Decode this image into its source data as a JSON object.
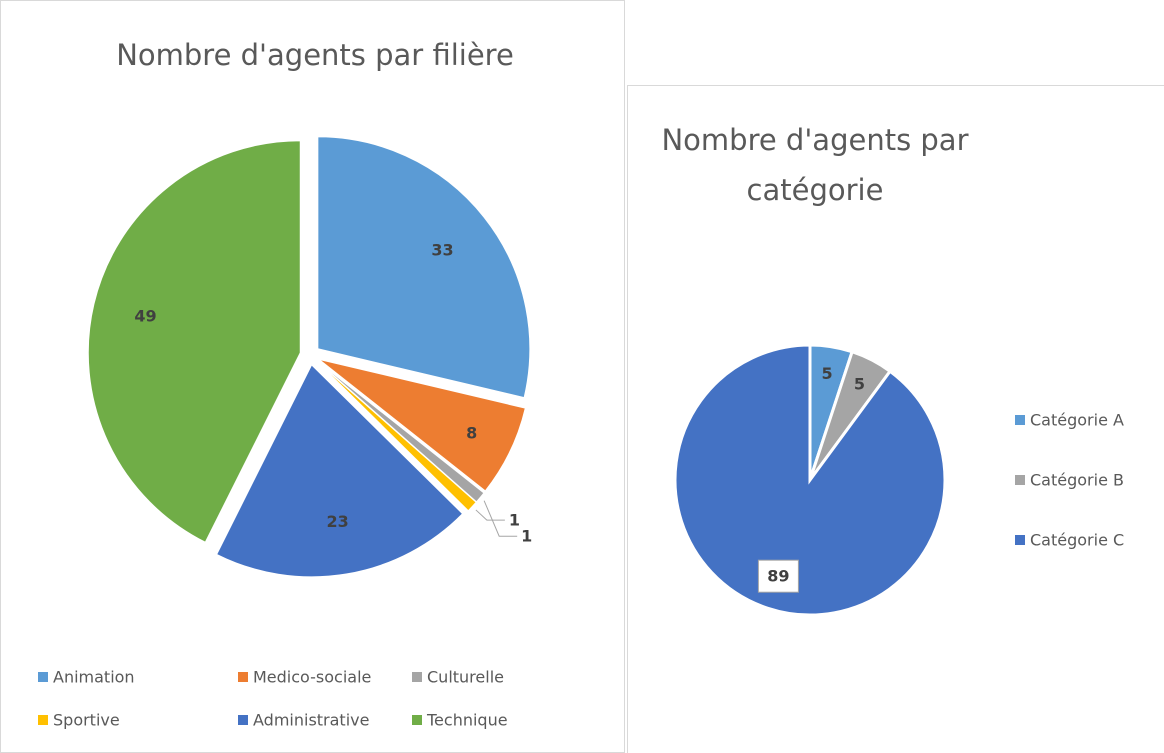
{
  "chart_data": [
    {
      "type": "pie",
      "title": "Nombre d'agents par filière",
      "categories": [
        "Animation",
        "Medico-sociale",
        "Culturelle",
        "Sportive",
        "Administrative",
        "Technique"
      ],
      "values": [
        33,
        8,
        1,
        1,
        23,
        49
      ],
      "colors": [
        "#5b9bd5",
        "#ed7d31",
        "#a5a5a5",
        "#ffc000",
        "#4472c4",
        "#70ad47"
      ],
      "legend": "bottom",
      "exploded": true
    },
    {
      "type": "pie",
      "title": "Nombre d'agents par catégorie",
      "categories": [
        "Catégorie A",
        "Catégorie B",
        "Catégorie C"
      ],
      "values": [
        5,
        5,
        89
      ],
      "colors": [
        "#5b9bd5",
        "#a5a5a5",
        "#4472c4"
      ],
      "legend": "right",
      "exploded": false
    }
  ]
}
